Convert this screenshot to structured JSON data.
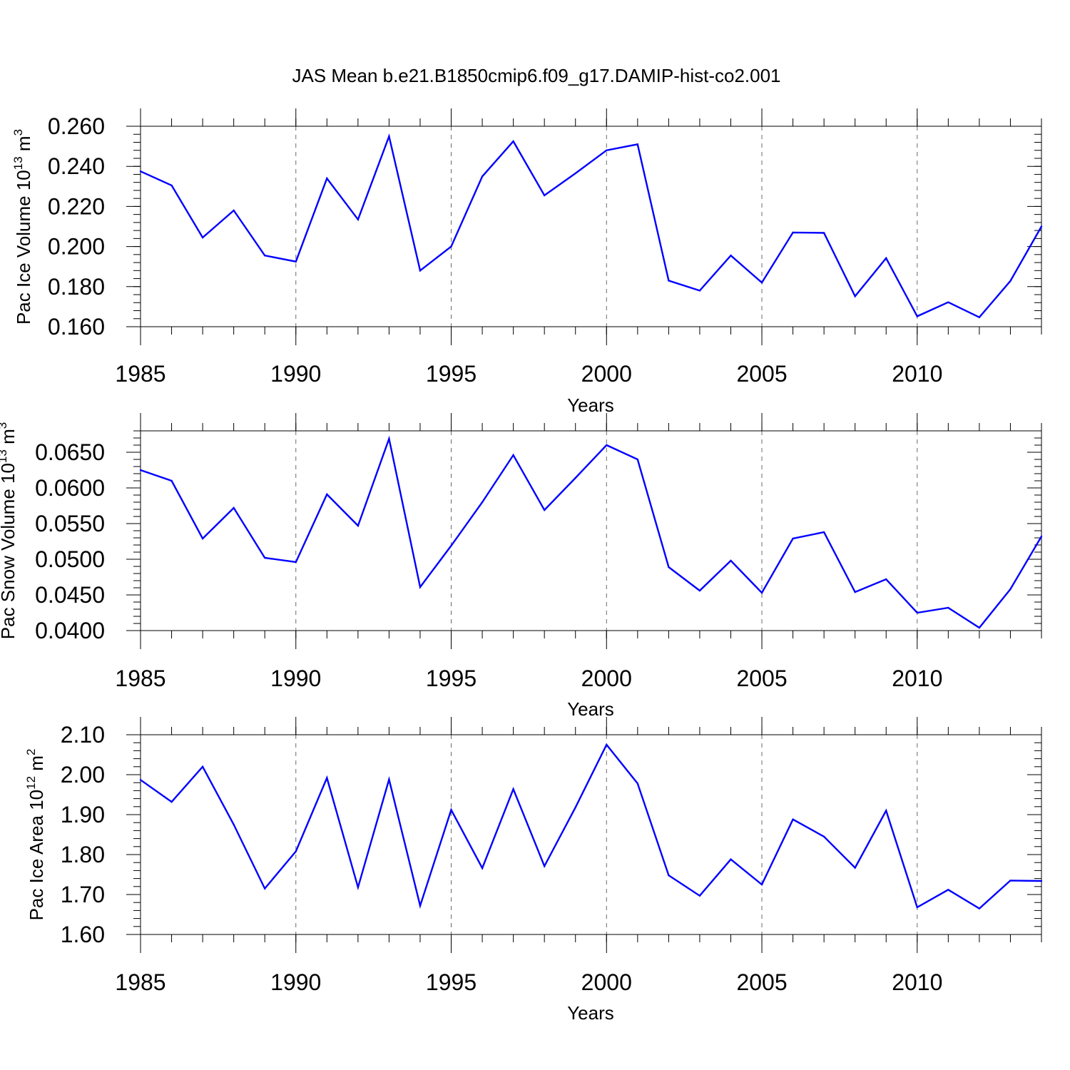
{
  "title": "JAS Mean b.e21.B1850cmip6.f09_g17.DAMIP-hist-co2.001",
  "chart_data": [
    {
      "type": "line",
      "xlabel": "Years",
      "ylabel_prefix": "Pac Ice Volume 10",
      "ylabel_exp": "13",
      "ylabel_unit": " m",
      "ylabel_unit_exp": "3",
      "xlim": [
        1985,
        2014
      ],
      "ylim": [
        0.16,
        0.26
      ],
      "x_ticks": [
        "1985",
        "1990",
        "1995",
        "2000",
        "2005",
        "2010"
      ],
      "y_ticks": [
        "0.160",
        "0.180",
        "0.200",
        "0.220",
        "0.240",
        "0.260"
      ],
      "grid": "x-dashed",
      "color": "#0000ff",
      "x": [
        1985,
        1986,
        1987,
        1988,
        1989,
        1990,
        1991,
        1992,
        1993,
        1994,
        1995,
        1996,
        1997,
        1998,
        1999,
        2000,
        2001,
        2002,
        2003,
        2004,
        2005,
        2006,
        2007,
        2008,
        2009,
        2010,
        2011,
        2012,
        2013,
        2014
      ],
      "values": [
        0.2375,
        0.2305,
        0.2045,
        0.218,
        0.1955,
        0.1925,
        0.234,
        0.2135,
        0.255,
        0.188,
        0.2,
        0.235,
        0.2525,
        0.2255,
        0.2365,
        0.248,
        0.251,
        0.183,
        0.178,
        0.1955,
        0.182,
        0.207,
        0.2068,
        0.1752,
        0.1942,
        0.1652,
        0.1722,
        0.1647,
        0.1828,
        0.21
      ]
    },
    {
      "type": "line",
      "xlabel": "Years",
      "ylabel_prefix": "Pac Snow Volume 10",
      "ylabel_exp": "13",
      "ylabel_unit": " m",
      "ylabel_unit_exp": "3",
      "xlim": [
        1985,
        2014
      ],
      "ylim": [
        0.04,
        0.068
      ],
      "x_ticks": [
        "1985",
        "1990",
        "1995",
        "2000",
        "2005",
        "2010"
      ],
      "y_ticks": [
        "0.0400",
        "0.0450",
        "0.0500",
        "0.0550",
        "0.0600",
        "0.0650"
      ],
      "grid": "x-dashed",
      "color": "#0000ff",
      "x": [
        1985,
        1986,
        1987,
        1988,
        1989,
        1990,
        1991,
        1992,
        1993,
        1994,
        1995,
        1996,
        1997,
        1998,
        1999,
        2000,
        2001,
        2002,
        2003,
        2004,
        2005,
        2006,
        2007,
        2008,
        2009,
        2010,
        2011,
        2012,
        2013,
        2014
      ],
      "values": [
        0.0625,
        0.061,
        0.0529,
        0.0572,
        0.0502,
        0.0496,
        0.0591,
        0.0547,
        0.0669,
        0.0461,
        0.0519,
        0.058,
        0.0646,
        0.0569,
        0.0614,
        0.066,
        0.064,
        0.0489,
        0.0456,
        0.0498,
        0.0453,
        0.0529,
        0.0538,
        0.0454,
        0.0472,
        0.0425,
        0.0432,
        0.0404,
        0.0458,
        0.0532
      ]
    },
    {
      "type": "line",
      "xlabel": "Years",
      "ylabel_prefix": "Pac Ice Area 10",
      "ylabel_exp": "12",
      "ylabel_unit": " m",
      "ylabel_unit_exp": "2",
      "xlim": [
        1985,
        2014
      ],
      "ylim": [
        1.6,
        2.1
      ],
      "x_ticks": [
        "1985",
        "1990",
        "1995",
        "2000",
        "2005",
        "2010"
      ],
      "y_ticks": [
        "1.60",
        "1.70",
        "1.80",
        "1.90",
        "2.00",
        "2.10"
      ],
      "grid": "x-dashed",
      "color": "#0000ff",
      "x": [
        1985,
        1986,
        1987,
        1988,
        1989,
        1990,
        1991,
        1992,
        1993,
        1994,
        1995,
        1996,
        1997,
        1998,
        1999,
        2000,
        2001,
        2002,
        2003,
        2004,
        2005,
        2006,
        2007,
        2008,
        2009,
        2010,
        2011,
        2012,
        2013,
        2014
      ],
      "values": [
        1.987,
        1.932,
        2.02,
        1.875,
        1.715,
        1.808,
        1.992,
        1.718,
        1.988,
        1.672,
        1.912,
        1.766,
        1.964,
        1.771,
        1.918,
        2.075,
        1.978,
        1.748,
        1.697,
        1.788,
        1.725,
        1.888,
        1.845,
        1.767,
        1.91,
        1.668,
        1.712,
        1.665,
        1.735,
        1.734
      ]
    }
  ]
}
